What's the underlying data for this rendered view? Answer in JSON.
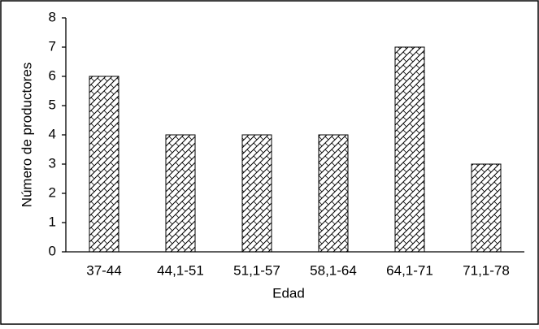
{
  "chart_data": {
    "type": "bar",
    "categories": [
      "37-44",
      "44,1-51",
      "51,1-57",
      "58,1-64",
      "64,1-71",
      "71,1-78"
    ],
    "values": [
      6,
      4,
      4,
      4,
      7,
      3
    ],
    "ylim": [
      0,
      8
    ],
    "yticks": [
      0,
      1,
      2,
      3,
      4,
      5,
      6,
      7,
      8
    ],
    "x_label": "Edad",
    "y_label": "Número de productores"
  }
}
